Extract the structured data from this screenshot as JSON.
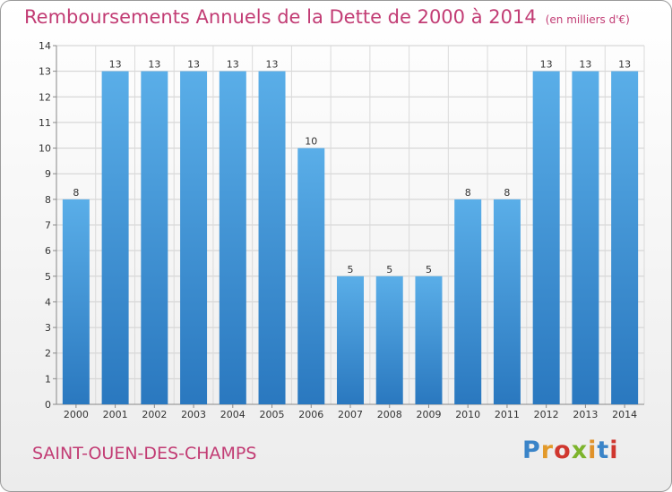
{
  "chart_data": {
    "type": "bar",
    "title": "Remboursements Annuels de la Dette de 2000 à 2014",
    "unit": "(en milliers d'€)",
    "categories": [
      "2000",
      "2001",
      "2002",
      "2003",
      "2004",
      "2005",
      "2006",
      "2007",
      "2008",
      "2009",
      "2010",
      "2011",
      "2012",
      "2013",
      "2014"
    ],
    "values": [
      8,
      13,
      13,
      13,
      13,
      13,
      10,
      5,
      5,
      5,
      8,
      8,
      13,
      13,
      13
    ],
    "ylim": [
      0,
      14
    ],
    "yticks": [
      "0",
      "1",
      "2",
      "3",
      "4",
      "5",
      "6",
      "7",
      "8",
      "9",
      "10",
      "11",
      "12",
      "13",
      "14"
    ],
    "grid": true,
    "bar_color": "#3d8fd6"
  },
  "footer": {
    "place": "SAINT-OUEN-DES-CHAMPS",
    "brand": "Proxiti"
  }
}
